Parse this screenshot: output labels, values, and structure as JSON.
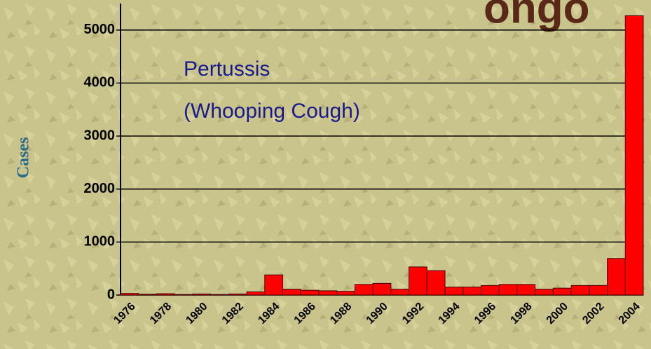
{
  "chart_data": {
    "type": "bar",
    "title": "ongo",
    "annotations": [
      "Pertussis",
      "(Whooping Cough)"
    ],
    "y_label": "Cases",
    "categories": [
      "1976",
      null,
      "1978",
      null,
      "1980",
      null,
      "1982",
      null,
      "1984",
      null,
      "1986",
      null,
      "1988",
      null,
      "1990",
      null,
      "1992",
      null,
      "1994",
      null,
      "1996",
      null,
      "1998",
      null,
      "2000",
      null,
      "2002",
      null,
      "2004"
    ],
    "values": [
      30,
      15,
      25,
      10,
      20,
      10,
      20,
      60,
      380,
      110,
      90,
      80,
      70,
      200,
      220,
      110,
      530,
      460,
      150,
      150,
      180,
      200,
      200,
      110,
      130,
      180,
      180,
      690,
      5270
    ],
    "color": "#ff0000",
    "ylim": [
      0,
      5500
    ],
    "yticks": [
      0,
      1000,
      2000,
      3000,
      4000,
      5000
    ],
    "grid": true
  }
}
